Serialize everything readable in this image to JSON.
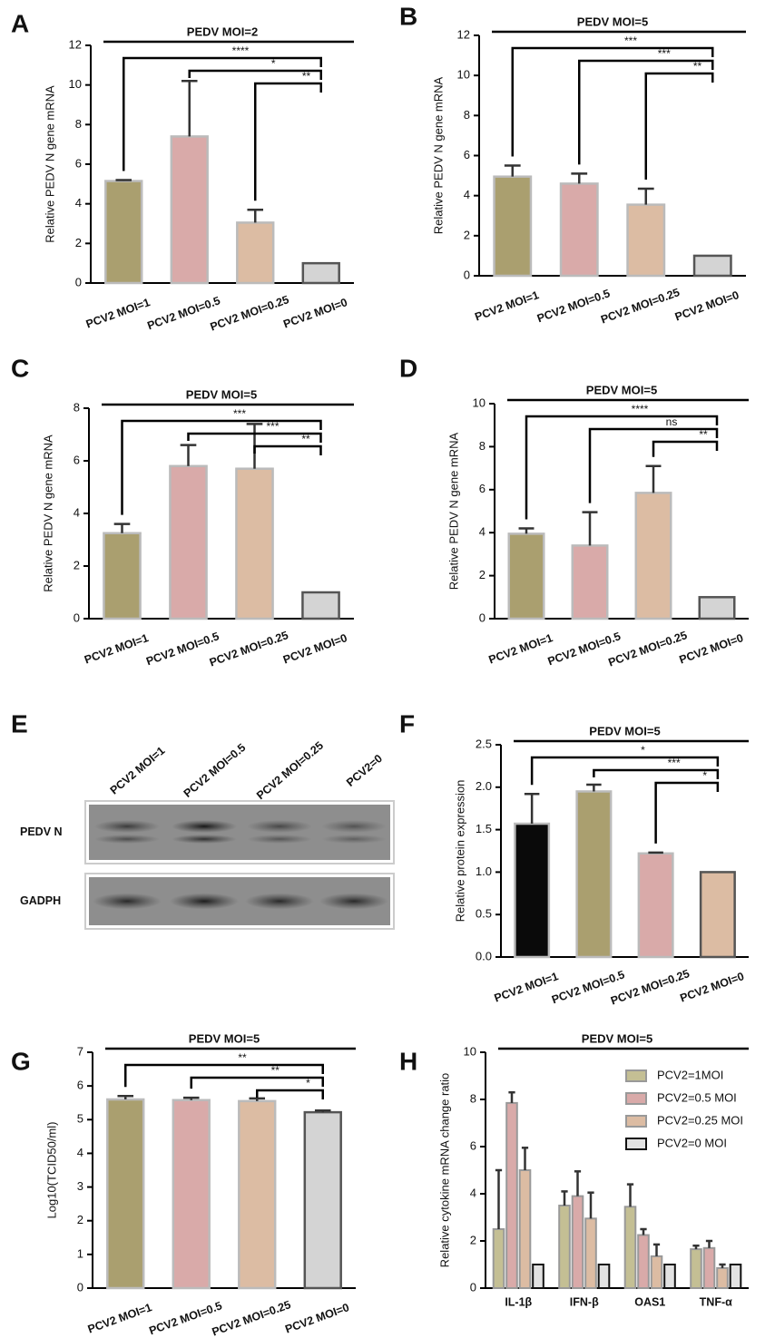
{
  "chart_data": [
    {
      "type": "bar",
      "panel": "A",
      "title": "PEDV MOI=2",
      "ylabel": "Relative PEDV N gene mRNA",
      "categories": [
        "PCV2 MOI=1",
        "PCV2 MOI=0.5",
        "PCV2 MOI=0.25",
        "PCV2 MOI=0"
      ],
      "values": [
        5.15,
        7.4,
        3.05,
        1.0
      ],
      "errors": [
        0.05,
        2.8,
        0.65,
        0
      ],
      "colors": [
        "#aa9f6f",
        "#d9aaa9",
        "#dcbca3",
        "#d4d4d4"
      ],
      "ylim": [
        0,
        12
      ],
      "yticks": [
        0,
        2,
        4,
        6,
        8,
        10,
        12
      ],
      "brackets": [
        {
          "label": "****",
          "between": [
            "PCV2 MOI=1",
            "PCV2 MOI=0"
          ]
        },
        {
          "label": "*",
          "between": [
            "PCV2 MOI=0.5",
            "PCV2 MOI=0"
          ]
        },
        {
          "label": "**",
          "between": [
            "PCV2 MOI=0.25",
            "PCV2 MOI=0"
          ]
        }
      ]
    },
    {
      "type": "bar",
      "panel": "B",
      "title": "PEDV MOI=5",
      "ylabel": "Relative PEDV N gene mRNA",
      "categories": [
        "PCV2 MOI=1",
        "PCV2 MOI=0.5",
        "PCV2 MOI=0.25",
        "PCV2 MOI=0"
      ],
      "values": [
        4.95,
        4.6,
        3.55,
        1.0
      ],
      "errors": [
        0.55,
        0.5,
        0.8,
        0
      ],
      "colors": [
        "#aa9f6f",
        "#d9aaa9",
        "#dcbca3",
        "#d4d4d4"
      ],
      "ylim": [
        0,
        12
      ],
      "yticks": [
        0,
        2,
        4,
        6,
        8,
        10,
        12
      ],
      "brackets": [
        {
          "label": "***",
          "between": [
            "PCV2 MOI=1",
            "PCV2 MOI=0"
          ]
        },
        {
          "label": "***",
          "between": [
            "PCV2 MOI=0.5",
            "PCV2 MOI=0"
          ]
        },
        {
          "label": "**",
          "between": [
            "PCV2 MOI=0.25",
            "PCV2 MOI=0"
          ]
        }
      ]
    },
    {
      "type": "bar",
      "panel": "C",
      "title": "PEDV MOI=5",
      "ylabel": "Relative PEDV N gene mRNA",
      "categories": [
        "PCV2 MOI=1",
        "PCV2 MOI=0.5",
        "PCV2 MOI=0.25",
        "PCV2 MOI=0"
      ],
      "values": [
        3.25,
        5.8,
        5.7,
        1.0
      ],
      "errors": [
        0.35,
        0.8,
        1.7,
        0
      ],
      "colors": [
        "#aa9f6f",
        "#d9aaa9",
        "#dcbca3",
        "#d4d4d4"
      ],
      "ylim": [
        0,
        8
      ],
      "yticks": [
        0,
        2,
        4,
        6,
        8
      ],
      "brackets": [
        {
          "label": "***",
          "between": [
            "PCV2 MOI=1",
            "PCV2 MOI=0"
          ]
        },
        {
          "label": "***",
          "between": [
            "PCV2 MOI=0.5",
            "PCV2 MOI=0"
          ]
        },
        {
          "label": "**",
          "between": [
            "PCV2 MOI=0.25",
            "PCV2 MOI=0"
          ]
        }
      ]
    },
    {
      "type": "bar",
      "panel": "D",
      "title": "PEDV MOI=5",
      "ylabel": "Relative PEDV N gene mRNA",
      "categories": [
        "PCV2 MOI=1",
        "PCV2 MOI=0.5",
        "PCV2 MOI=0.25",
        "PCV2 MOI=0"
      ],
      "values": [
        3.95,
        3.4,
        5.85,
        1.0
      ],
      "errors": [
        0.25,
        1.55,
        1.25,
        0
      ],
      "colors": [
        "#aa9f6f",
        "#d9aaa9",
        "#dcbca3",
        "#d4d4d4"
      ],
      "ylim": [
        0,
        10
      ],
      "yticks": [
        0,
        2,
        4,
        6,
        8,
        10
      ],
      "brackets": [
        {
          "label": "****",
          "between": [
            "PCV2 MOI=1",
            "PCV2 MOI=0"
          ]
        },
        {
          "label": "ns",
          "between": [
            "PCV2 MOI=0.5",
            "PCV2 MOI=0"
          ]
        },
        {
          "label": "**",
          "between": [
            "PCV2 MOI=0.25",
            "PCV2 MOI=0"
          ]
        }
      ]
    },
    {
      "type": "bar",
      "panel": "F",
      "title": "PEDV MOI=5",
      "ylabel": "Relative protein expression",
      "categories": [
        "PCV2 MOI=1",
        "PCV2 MOI=0.5",
        "PCV2 MOI=0.25",
        "PCV2 MOI=0"
      ],
      "values": [
        1.57,
        1.95,
        1.22,
        1.0
      ],
      "errors": [
        0.35,
        0.08,
        0.01,
        0
      ],
      "colors": [
        "#0a0a0a",
        "#aa9f6f",
        "#d9aaa9",
        "#dcbca3"
      ],
      "ylim": [
        0,
        2.5
      ],
      "yticks": [
        {
          "value": 0,
          "label": "0.0"
        },
        0.5,
        {
          "value": 1,
          "label": "1.0"
        },
        1.5,
        {
          "value": 2,
          "label": "2.0"
        },
        2.5
      ],
      "brackets": [
        {
          "label": "*",
          "between": [
            "PCV2 MOI=1",
            "PCV2 MOI=0"
          ]
        },
        {
          "label": "***",
          "between": [
            "PCV2 MOI=0.5",
            "PCV2 MOI=0"
          ]
        },
        {
          "label": "*",
          "between": [
            "PCV2 MOI=0.25",
            "PCV2 MOI=0"
          ]
        }
      ]
    },
    {
      "type": "bar",
      "panel": "G",
      "title": "PEDV MOI=5",
      "ylabel": "Log10(TCID50/ml)",
      "categories": [
        "PCV2 MOI=1",
        "PCV2 MOI=0.5",
        "PCV2 MOI=0.25",
        "PCV2 MOI=0"
      ],
      "values": [
        5.6,
        5.58,
        5.55,
        5.22
      ],
      "errors": [
        0.1,
        0.07,
        0.08,
        0.05
      ],
      "colors": [
        "#aa9f6f",
        "#d9aaa9",
        "#dcbca3",
        "#d4d4d4"
      ],
      "ylim": [
        0,
        7
      ],
      "yticks": [
        0,
        1,
        2,
        3,
        4,
        5,
        6,
        7
      ],
      "brackets": [
        {
          "label": "**",
          "between": [
            "PCV2 MOI=1",
            "PCV2 MOI=0"
          ]
        },
        {
          "label": "**",
          "between": [
            "PCV2 MOI=0.5",
            "PCV2 MOI=0"
          ]
        },
        {
          "label": "*",
          "between": [
            "PCV2 MOI=0.25",
            "PCV2 MOI=0"
          ]
        }
      ]
    },
    {
      "type": "grouped-bar",
      "panel": "H",
      "title": "PEDV MOI=5",
      "ylabel": "Relative cytokine mRNA change ratio",
      "categories": [
        "IL-1β",
        "IFN-β",
        "OAS1",
        "TNF-α"
      ],
      "series": [
        {
          "name": "PCV2=1MOI",
          "color": "#c4bf94",
          "values": [
            2.5,
            3.5,
            3.45,
            1.65
          ],
          "errors": [
            2.5,
            0.6,
            0.95,
            0.15
          ]
        },
        {
          "name": "PCV2=0.5 MOI",
          "color": "#d9aaa9",
          "values": [
            7.85,
            3.9,
            2.25,
            1.7
          ],
          "errors": [
            0.45,
            1.05,
            0.25,
            0.3
          ]
        },
        {
          "name": "PCV2=0.25 MOI",
          "color": "#dcbca3",
          "values": [
            5.0,
            2.95,
            1.35,
            0.85
          ],
          "errors": [
            0.95,
            1.1,
            0.5,
            0.15
          ]
        },
        {
          "name": "PCV2=0 MOI",
          "color": "#e2e2e2",
          "values": [
            1,
            1,
            1,
            1
          ],
          "errors": [
            0,
            0,
            0,
            0
          ]
        }
      ],
      "ylim": [
        0,
        10
      ],
      "yticks": [
        0,
        2,
        4,
        6,
        8,
        10
      ],
      "legend": "upper right"
    }
  ],
  "blot": {
    "panel": "E",
    "lanes": [
      "PCV2 MOI=1",
      "PCV2 MOI=0.5",
      "PCV2 MOI=0.25",
      "PCV2=0"
    ],
    "rows": [
      "PEDV N",
      "GADPH"
    ]
  }
}
